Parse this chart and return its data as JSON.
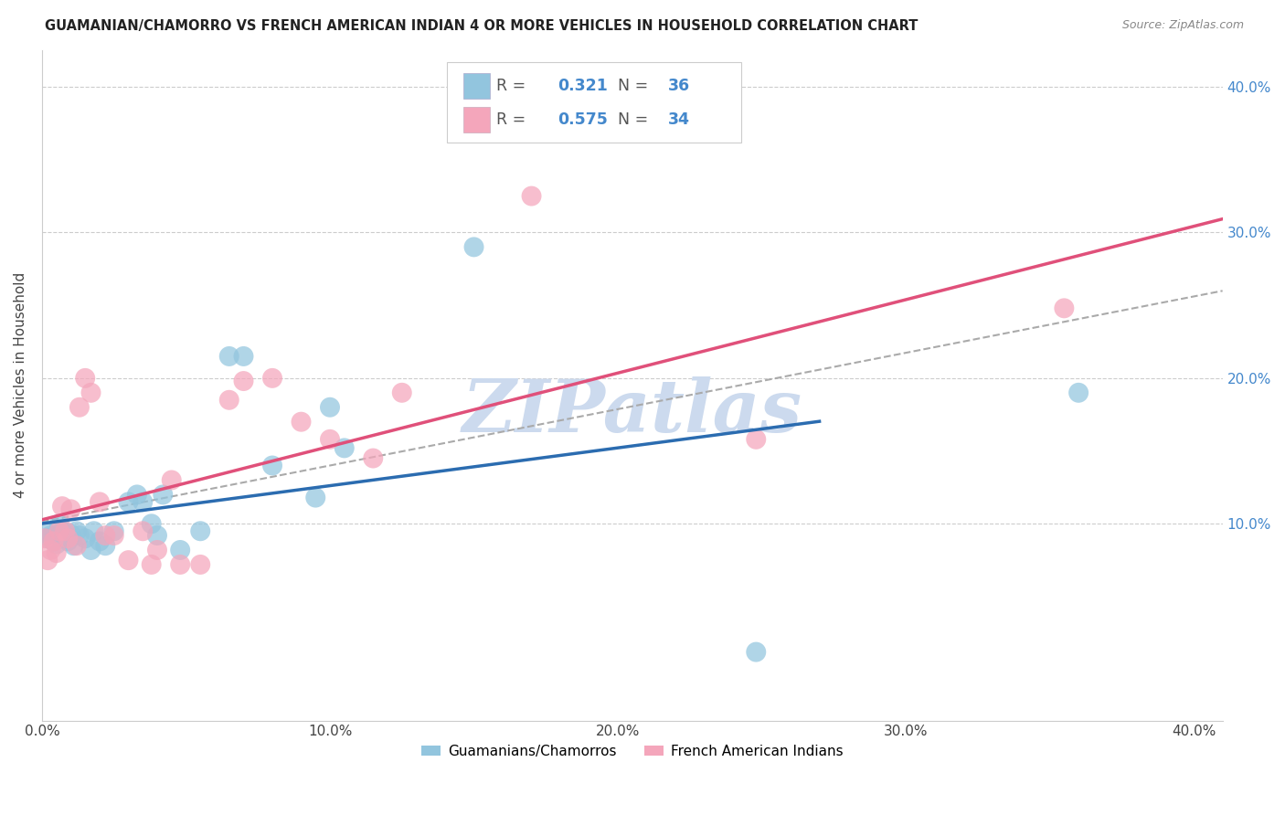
{
  "title": "GUAMANIAN/CHAMORRO VS FRENCH AMERICAN INDIAN 4 OR MORE VEHICLES IN HOUSEHOLD CORRELATION CHART",
  "source": "Source: ZipAtlas.com",
  "ylabel": "4 or more Vehicles in Household",
  "xlim": [
    0.0,
    0.41
  ],
  "ylim": [
    -0.035,
    0.425
  ],
  "xtick_vals": [
    0.0,
    0.1,
    0.2,
    0.3,
    0.4
  ],
  "ytick_vals": [
    0.1,
    0.2,
    0.3,
    0.4
  ],
  "ytick_labels_right": [
    "10.0%",
    "20.0%",
    "30.0%",
    "40.0%"
  ],
  "xtick_labels": [
    "0.0%",
    "10.0%",
    "20.0%",
    "30.0%",
    "40.0%"
  ],
  "legend_label1": "Guamanians/Chamorros",
  "legend_label2": "French American Indians",
  "R1": "0.321",
  "N1": "36",
  "R2": "0.575",
  "N2": "34",
  "blue_color": "#92c5de",
  "pink_color": "#f4a6bb",
  "blue_line_color": "#2b6cb0",
  "pink_line_color": "#e0507a",
  "gray_dash_color": "#aaaaaa",
  "watermark_text": "ZIPatlas",
  "watermark_color": "#ccdaee",
  "blue_x": [
    0.001,
    0.002,
    0.003,
    0.004,
    0.005,
    0.006,
    0.007,
    0.008,
    0.009,
    0.01,
    0.011,
    0.012,
    0.013,
    0.015,
    0.017,
    0.018,
    0.02,
    0.022,
    0.025,
    0.03,
    0.033,
    0.035,
    0.038,
    0.04,
    0.042,
    0.048,
    0.055,
    0.065,
    0.07,
    0.08,
    0.095,
    0.1,
    0.105,
    0.15,
    0.248,
    0.36
  ],
  "blue_y": [
    0.095,
    0.09,
    0.092,
    0.088,
    0.086,
    0.1,
    0.095,
    0.09,
    0.088,
    0.093,
    0.085,
    0.095,
    0.092,
    0.09,
    0.082,
    0.095,
    0.088,
    0.085,
    0.095,
    0.115,
    0.12,
    0.115,
    0.1,
    0.092,
    0.12,
    0.082,
    0.095,
    0.215,
    0.215,
    0.14,
    0.118,
    0.18,
    0.152,
    0.29,
    0.012,
    0.19
  ],
  "pink_x": [
    0.001,
    0.002,
    0.003,
    0.004,
    0.005,
    0.006,
    0.007,
    0.008,
    0.009,
    0.01,
    0.012,
    0.013,
    0.015,
    0.017,
    0.02,
    0.022,
    0.025,
    0.03,
    0.035,
    0.038,
    0.04,
    0.045,
    0.048,
    0.055,
    0.065,
    0.07,
    0.08,
    0.09,
    0.1,
    0.115,
    0.125,
    0.17,
    0.248,
    0.355
  ],
  "pink_y": [
    0.09,
    0.075,
    0.082,
    0.088,
    0.08,
    0.095,
    0.112,
    0.095,
    0.09,
    0.11,
    0.085,
    0.18,
    0.2,
    0.19,
    0.115,
    0.092,
    0.092,
    0.075,
    0.095,
    0.072,
    0.082,
    0.13,
    0.072,
    0.072,
    0.185,
    0.198,
    0.2,
    0.17,
    0.158,
    0.145,
    0.19,
    0.325,
    0.158,
    0.248
  ],
  "blue_line_x0": 0.0,
  "blue_line_x1": 0.27,
  "pink_line_x0": 0.0,
  "pink_line_x1": 0.41,
  "gray_line_x0": 0.0,
  "gray_line_x1": 0.41
}
